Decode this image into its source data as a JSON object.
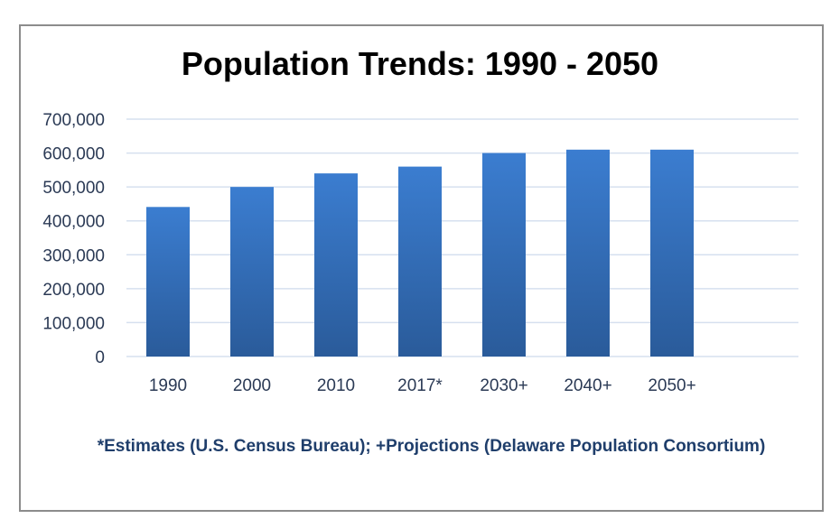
{
  "chart_data": {
    "type": "bar",
    "title": "Population Trends: 1990 - 2050",
    "categories": [
      "1990",
      "2000",
      "2010",
      "2017*",
      "2030+",
      "2040+",
      "2050+"
    ],
    "values": [
      441000,
      500000,
      540000,
      560000,
      600000,
      610000,
      610000
    ],
    "ylim": [
      0,
      700000
    ],
    "yticks": [
      "0",
      "100,000",
      "200,000",
      "300,000",
      "400,000",
      "500,000",
      "600,000",
      "700,000"
    ],
    "xlabel": "",
    "ylabel": "",
    "grid": true,
    "legend": "none",
    "bar_color_top": "#3b7dd0",
    "bar_color_bottom": "#2a5b9a",
    "note": "*Estimates (U.S. Census Bureau); +Projections (Delaware Population Consortium)"
  },
  "colors": {
    "gridline": "#d6e0ef",
    "axis_text": "#2b3a55",
    "note_text": "#1f3e6b"
  }
}
